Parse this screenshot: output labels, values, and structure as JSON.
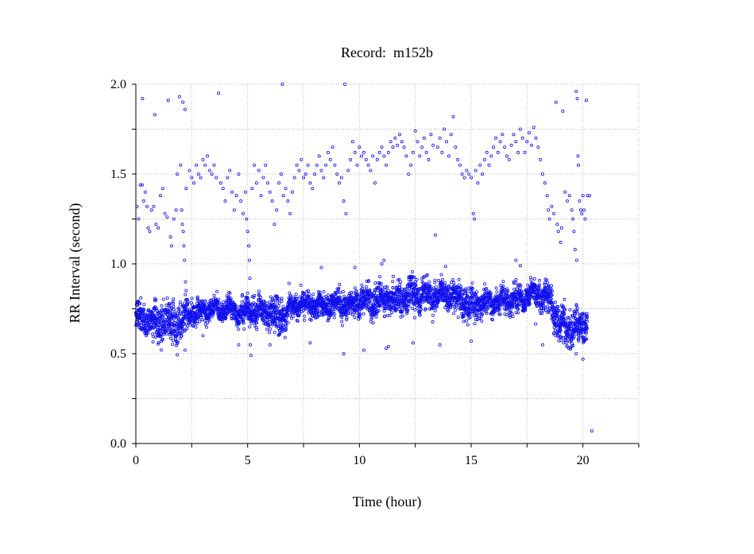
{
  "chart_data": {
    "type": "scatter",
    "title": "Record:  m152b",
    "xlabel": "Time (hour)",
    "ylabel": "RR Interval (second)",
    "xlim": [
      0,
      22.5
    ],
    "ylim": [
      0,
      2.0
    ],
    "x_ticks": [
      0,
      5,
      10,
      15,
      20
    ],
    "x_tick_labels": [
      "0",
      "5",
      "10",
      "15",
      "20"
    ],
    "x_minor_ticks": [
      2.5,
      7.5,
      12.5,
      17.5,
      22.5
    ],
    "y_ticks": [
      0,
      0.5,
      1.0,
      1.5,
      2.0
    ],
    "y_tick_labels": [
      "0.0",
      "0.5",
      "1.0",
      "1.5",
      "2.0"
    ],
    "y_minor_ticks": [
      0.25,
      0.75,
      1.25,
      1.75
    ],
    "grid": true,
    "grid_style": "dotted",
    "marker": "open-circle",
    "colors": {
      "points": "#1010ee",
      "grid": "#b8b8b8",
      "axes": "#000000"
    },
    "series": [
      {
        "values_description_only": false,
        "band_profile": {
          "x": [
            0,
            0.5,
            1.0,
            1.5,
            2.0,
            2.5,
            3.0,
            3.5,
            4.0,
            4.5,
            5.0,
            5.5,
            6.0,
            6.5,
            7.0,
            7.5,
            8.0,
            8.5,
            9.0,
            9.5,
            10.0,
            10.5,
            11.0,
            11.5,
            12.0,
            12.5,
            13.0,
            13.5,
            14.0,
            14.5,
            15.0,
            15.5,
            16.0,
            16.5,
            17.0,
            17.5,
            18.0,
            18.5,
            19.0,
            19.5,
            20.0,
            20.2
          ],
          "median": [
            0.7,
            0.69,
            0.68,
            0.66,
            0.68,
            0.72,
            0.74,
            0.75,
            0.75,
            0.74,
            0.73,
            0.74,
            0.72,
            0.7,
            0.76,
            0.78,
            0.76,
            0.77,
            0.78,
            0.77,
            0.8,
            0.79,
            0.8,
            0.8,
            0.82,
            0.83,
            0.82,
            0.82,
            0.83,
            0.8,
            0.76,
            0.78,
            0.79,
            0.8,
            0.8,
            0.82,
            0.84,
            0.8,
            0.65,
            0.64,
            0.66,
            0.68
          ],
          "spread": [
            0.08,
            0.08,
            0.09,
            0.1,
            0.1,
            0.06,
            0.05,
            0.05,
            0.05,
            0.06,
            0.07,
            0.06,
            0.08,
            0.08,
            0.06,
            0.05,
            0.06,
            0.06,
            0.06,
            0.06,
            0.07,
            0.07,
            0.07,
            0.07,
            0.07,
            0.08,
            0.07,
            0.07,
            0.07,
            0.08,
            0.08,
            0.06,
            0.06,
            0.06,
            0.06,
            0.06,
            0.06,
            0.08,
            0.09,
            0.09,
            0.08,
            0.08
          ]
        },
        "outliers": [
          [
            0.05,
            1.32
          ],
          [
            0.12,
            1.25
          ],
          [
            0.2,
            1.44
          ],
          [
            0.28,
            1.44
          ],
          [
            0.3,
            1.92
          ],
          [
            0.35,
            1.35
          ],
          [
            0.42,
            1.4
          ],
          [
            0.5,
            1.32
          ],
          [
            0.55,
            1.2
          ],
          [
            0.62,
            1.18
          ],
          [
            0.7,
            1.3
          ],
          [
            0.8,
            1.32
          ],
          [
            0.85,
            1.83
          ],
          [
            0.9,
            1.22
          ],
          [
            1.0,
            1.2
          ],
          [
            1.1,
            1.38
          ],
          [
            1.2,
            1.42
          ],
          [
            1.3,
            1.28
          ],
          [
            1.4,
            1.26
          ],
          [
            1.45,
            1.91
          ],
          [
            1.55,
            1.15
          ],
          [
            1.6,
            1.1
          ],
          [
            1.7,
            1.25
          ],
          [
            1.8,
            1.3
          ],
          [
            1.85,
            1.5
          ],
          [
            1.95,
            1.93
          ],
          [
            2.0,
            1.55
          ],
          [
            2.05,
            1.3
          ],
          [
            2.08,
            1.22
          ],
          [
            2.1,
            1.9
          ],
          [
            2.12,
            1.18
          ],
          [
            2.15,
            1.1
          ],
          [
            2.18,
            1.02
          ],
          [
            2.2,
            1.86
          ],
          [
            2.22,
            0.9
          ],
          [
            2.25,
            1.42
          ],
          [
            2.4,
            1.52
          ],
          [
            2.5,
            1.48
          ],
          [
            2.6,
            1.45
          ],
          [
            2.7,
            1.55
          ],
          [
            2.8,
            1.5
          ],
          [
            2.9,
            1.48
          ],
          [
            3.0,
            1.58
          ],
          [
            3.1,
            1.55
          ],
          [
            3.2,
            1.6
          ],
          [
            3.3,
            1.52
          ],
          [
            3.4,
            1.5
          ],
          [
            3.5,
            1.55
          ],
          [
            3.6,
            1.48
          ],
          [
            3.7,
            1.95
          ],
          [
            3.8,
            1.45
          ],
          [
            3.9,
            1.42
          ],
          [
            4.0,
            1.35
          ],
          [
            4.1,
            1.48
          ],
          [
            4.2,
            1.52
          ],
          [
            4.3,
            1.4
          ],
          [
            4.4,
            1.3
          ],
          [
            4.5,
            1.38
          ],
          [
            4.6,
            1.5
          ],
          [
            4.7,
            1.35
          ],
          [
            4.8,
            1.28
          ],
          [
            4.9,
            1.4
          ],
          [
            4.95,
            1.25
          ],
          [
            5.0,
            1.18
          ],
          [
            5.05,
            1.1
          ],
          [
            5.08,
            1.02
          ],
          [
            5.1,
            0.92
          ],
          [
            5.12,
            0.55
          ],
          [
            5.15,
            0.49
          ],
          [
            5.2,
            1.42
          ],
          [
            5.3,
            1.55
          ],
          [
            5.4,
            1.45
          ],
          [
            5.5,
            1.52
          ],
          [
            5.6,
            1.38
          ],
          [
            5.7,
            1.48
          ],
          [
            5.8,
            1.55
          ],
          [
            5.9,
            1.45
          ],
          [
            6.0,
            1.4
          ],
          [
            6.1,
            1.35
          ],
          [
            6.2,
            1.22
          ],
          [
            6.3,
            1.3
          ],
          [
            6.4,
            1.45
          ],
          [
            6.5,
            1.5
          ],
          [
            6.55,
            2.0
          ],
          [
            6.6,
            1.38
          ],
          [
            6.7,
            1.42
          ],
          [
            6.8,
            1.35
          ],
          [
            6.9,
            1.28
          ],
          [
            7.0,
            1.4
          ],
          [
            7.1,
            1.48
          ],
          [
            7.2,
            1.55
          ],
          [
            7.3,
            1.52
          ],
          [
            7.4,
            1.58
          ],
          [
            7.5,
            1.48
          ],
          [
            7.6,
            1.5
          ],
          [
            7.7,
            1.55
          ],
          [
            7.8,
            1.45
          ],
          [
            7.9,
            1.42
          ],
          [
            8.0,
            1.5
          ],
          [
            8.1,
            1.55
          ],
          [
            8.2,
            1.6
          ],
          [
            8.3,
            1.52
          ],
          [
            8.4,
            1.48
          ],
          [
            8.5,
            1.55
          ],
          [
            8.6,
            1.62
          ],
          [
            8.7,
            1.58
          ],
          [
            8.8,
            1.65
          ],
          [
            8.9,
            1.55
          ],
          [
            9.0,
            1.5
          ],
          [
            9.1,
            1.45
          ],
          [
            9.2,
            1.48
          ],
          [
            9.3,
            1.35
          ],
          [
            9.35,
            2.0
          ],
          [
            9.4,
            1.28
          ],
          [
            9.5,
            1.52
          ],
          [
            9.6,
            1.58
          ],
          [
            9.7,
            1.68
          ],
          [
            9.8,
            1.62
          ],
          [
            9.9,
            1.55
          ],
          [
            10.0,
            1.65
          ],
          [
            10.1,
            1.6
          ],
          [
            10.2,
            1.62
          ],
          [
            10.3,
            1.58
          ],
          [
            10.4,
            1.55
          ],
          [
            10.5,
            1.52
          ],
          [
            10.6,
            1.6
          ],
          [
            10.7,
            1.45
          ],
          [
            10.8,
            1.58
          ],
          [
            10.9,
            1.62
          ],
          [
            11.0,
            1.65
          ],
          [
            11.1,
            1.6
          ],
          [
            11.2,
            1.55
          ],
          [
            11.3,
            1.62
          ],
          [
            11.4,
            1.68
          ],
          [
            11.5,
            1.65
          ],
          [
            11.6,
            1.7
          ],
          [
            11.7,
            1.66
          ],
          [
            11.8,
            1.72
          ],
          [
            11.9,
            1.68
          ],
          [
            12.0,
            1.65
          ],
          [
            12.1,
            1.6
          ],
          [
            12.2,
            1.5
          ],
          [
            12.3,
            1.55
          ],
          [
            12.4,
            1.62
          ],
          [
            12.5,
            1.74
          ],
          [
            12.6,
            1.68
          ],
          [
            12.7,
            1.6
          ],
          [
            12.8,
            1.65
          ],
          [
            12.9,
            1.7
          ],
          [
            13.0,
            1.62
          ],
          [
            13.1,
            1.58
          ],
          [
            13.2,
            1.72
          ],
          [
            13.3,
            1.66
          ],
          [
            13.4,
            1.16
          ],
          [
            13.5,
            1.65
          ],
          [
            13.6,
            1.7
          ],
          [
            13.7,
            1.62
          ],
          [
            13.8,
            1.75
          ],
          [
            13.9,
            1.68
          ],
          [
            14.0,
            1.6
          ],
          [
            14.1,
            1.72
          ],
          [
            14.2,
            1.82
          ],
          [
            14.3,
            1.65
          ],
          [
            14.4,
            1.58
          ],
          [
            14.5,
            1.55
          ],
          [
            14.6,
            1.5
          ],
          [
            14.7,
            1.48
          ],
          [
            14.8,
            1.52
          ],
          [
            14.9,
            1.5
          ],
          [
            15.0,
            1.48
          ],
          [
            15.1,
            1.28
          ],
          [
            15.15,
            1.25
          ],
          [
            15.2,
            1.52
          ],
          [
            15.3,
            1.45
          ],
          [
            15.4,
            1.55
          ],
          [
            15.5,
            1.5
          ],
          [
            15.6,
            1.58
          ],
          [
            15.7,
            1.62
          ],
          [
            15.8,
            1.55
          ],
          [
            15.9,
            1.6
          ],
          [
            16.0,
            1.65
          ],
          [
            16.1,
            1.7
          ],
          [
            16.2,
            1.62
          ],
          [
            16.3,
            1.68
          ],
          [
            16.4,
            1.72
          ],
          [
            16.5,
            1.65
          ],
          [
            16.6,
            1.6
          ],
          [
            16.7,
            1.58
          ],
          [
            16.8,
            1.66
          ],
          [
            16.9,
            1.72
          ],
          [
            17.0,
            1.68
          ],
          [
            17.1,
            1.62
          ],
          [
            17.2,
            1.75
          ],
          [
            17.3,
            1.7
          ],
          [
            17.4,
            1.62
          ],
          [
            17.5,
            1.68
          ],
          [
            17.6,
            1.73
          ],
          [
            17.7,
            1.66
          ],
          [
            17.8,
            1.76
          ],
          [
            17.9,
            1.7
          ],
          [
            18.0,
            1.65
          ],
          [
            18.1,
            1.58
          ],
          [
            18.2,
            1.5
          ],
          [
            18.3,
            1.45
          ],
          [
            18.4,
            1.38
          ],
          [
            18.45,
            1.3
          ],
          [
            18.5,
            1.25
          ],
          [
            18.6,
            1.32
          ],
          [
            18.7,
            1.28
          ],
          [
            18.8,
            1.9
          ],
          [
            18.85,
            1.22
          ],
          [
            18.9,
            1.18
          ],
          [
            19.0,
            1.12
          ],
          [
            19.05,
            1.2
          ],
          [
            19.1,
            1.85
          ],
          [
            19.2,
            1.4
          ],
          [
            19.3,
            1.35
          ],
          [
            19.4,
            1.38
          ],
          [
            19.5,
            1.3
          ],
          [
            19.55,
            1.25
          ],
          [
            19.6,
            1.18
          ],
          [
            19.65,
            1.08
          ],
          [
            19.7,
            1.96
          ],
          [
            19.72,
            1.02
          ],
          [
            19.75,
            1.92
          ],
          [
            19.78,
            1.6
          ],
          [
            19.8,
            1.55
          ],
          [
            19.85,
            1.35
          ],
          [
            19.9,
            1.3
          ],
          [
            19.95,
            1.28
          ],
          [
            20.0,
            1.38
          ],
          [
            20.05,
            1.3
          ],
          [
            20.1,
            1.25
          ],
          [
            20.15,
            1.91
          ],
          [
            20.2,
            1.38
          ],
          [
            20.3,
            1.38
          ],
          [
            20.4,
            0.07
          ],
          [
            1.2,
            0.58
          ],
          [
            2.2,
            0.52
          ],
          [
            3.0,
            0.6
          ],
          [
            4.6,
            0.55
          ],
          [
            6.0,
            0.55
          ],
          [
            7.8,
            0.56
          ],
          [
            9.3,
            0.5
          ],
          [
            10.2,
            0.52
          ],
          [
            11.2,
            0.53
          ],
          [
            11.3,
            0.54
          ],
          [
            12.4,
            0.56
          ],
          [
            13.6,
            0.55
          ],
          [
            15.0,
            0.57
          ],
          [
            18.2,
            0.55
          ],
          [
            19.7,
            0.5
          ],
          [
            20.0,
            0.47
          ],
          [
            11.0,
            1.0
          ],
          [
            11.1,
            1.02
          ],
          [
            17.0,
            1.02
          ],
          [
            17.2,
            0.99
          ],
          [
            8.3,
            0.98
          ],
          [
            9.8,
            0.98
          ]
        ]
      }
    ]
  }
}
